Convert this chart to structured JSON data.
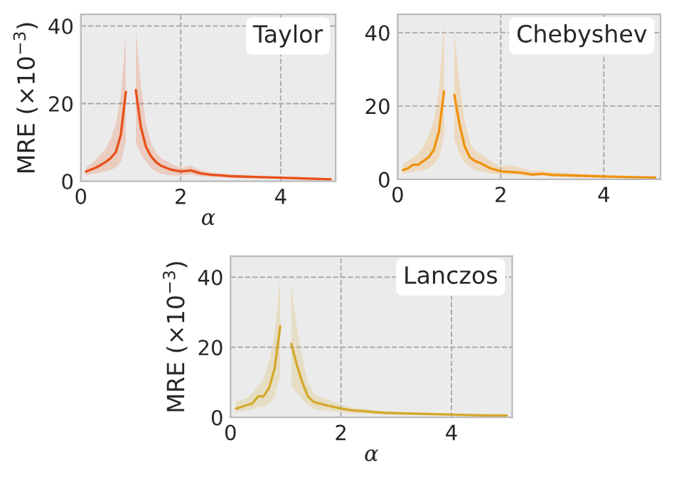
{
  "chart_data": [
    {
      "type": "line",
      "title": "Taylor",
      "xlabel": "α",
      "ylabel": "MRE (×10$^{−3}$)",
      "x": [
        0.1,
        0.2,
        0.3,
        0.4,
        0.5,
        0.6,
        0.7,
        0.8,
        0.9,
        1.0,
        1.1,
        1.2,
        1.3,
        1.4,
        1.5,
        1.6,
        1.8,
        2.0,
        2.2,
        2.4,
        2.6,
        2.8,
        3.0,
        3.5,
        4.0,
        4.5,
        5.0
      ],
      "series": [
        {
          "color": "#e8501a",
          "values": [
            2.5,
            3,
            3.5,
            4.2,
            5,
            6,
            7.5,
            12,
            23,
            null,
            23.5,
            14,
            9,
            6.5,
            5,
            4,
            3,
            2.5,
            2.8,
            2,
            1.7,
            1.5,
            1.3,
            1.1,
            0.9,
            0.7,
            0.5
          ],
          "lower": [
            1.5,
            1.8,
            2,
            2.3,
            2.5,
            3,
            3.5,
            5,
            10,
            null,
            10,
            7,
            5,
            3.5,
            2.5,
            2,
            1.5,
            1.5,
            1.8,
            1.3,
            1.1,
            1,
            0.9,
            0.7,
            0.6,
            0.5,
            0.3
          ],
          "upper": [
            3.5,
            4.5,
            5.5,
            7,
            8.5,
            11,
            15,
            22,
            38,
            null,
            39,
            25,
            15,
            10,
            7.5,
            6,
            4.5,
            3.5,
            4,
            2.8,
            2.3,
            2,
            1.8,
            1.5,
            1.2,
            1,
            0.7
          ]
        }
      ],
      "xlim": [
        0,
        5.1
      ],
      "ylim": [
        0,
        43
      ],
      "xticks": [
        0,
        2,
        4
      ],
      "yticks": [
        0,
        20,
        40
      ],
      "grid": true
    },
    {
      "type": "line",
      "title": "Chebyshev",
      "x": [
        0.1,
        0.2,
        0.3,
        0.4,
        0.5,
        0.6,
        0.7,
        0.8,
        0.9,
        1.0,
        1.1,
        1.2,
        1.3,
        1.4,
        1.5,
        1.6,
        1.8,
        2.0,
        2.2,
        2.4,
        2.6,
        2.8,
        3.0,
        3.5,
        4.0,
        4.5,
        5.0
      ],
      "series": [
        {
          "color": "#f0920f",
          "values": [
            2.5,
            3,
            4,
            4,
            5,
            6,
            8,
            13,
            24,
            null,
            23,
            15,
            9,
            6,
            5,
            4.5,
            3,
            2.2,
            2,
            1.8,
            1.3,
            1.5,
            1.2,
            1,
            0.8,
            0.6,
            0.5
          ],
          "lower": [
            1.5,
            1.8,
            2,
            2.3,
            2.5,
            3,
            4,
            6,
            12,
            null,
            11,
            7,
            4.5,
            3.5,
            2.5,
            2.2,
            1.6,
            1.3,
            1.3,
            1.1,
            0.9,
            1,
            0.8,
            0.6,
            0.5,
            0.4,
            0.3
          ],
          "upper": [
            4,
            5,
            6,
            7,
            9,
            12,
            16,
            24,
            43,
            null,
            40,
            26,
            16,
            10,
            8,
            7,
            5,
            3.5,
            3.8,
            3.2,
            2.3,
            2.4,
            2,
            1.5,
            1.2,
            1,
            0.8
          ]
        }
      ],
      "xlim": [
        0,
        5.1
      ],
      "ylim": [
        0,
        45
      ],
      "xticks": [
        0,
        2,
        4
      ],
      "yticks": [
        0,
        20,
        40
      ],
      "grid": true
    },
    {
      "type": "line",
      "title": "Lanczos",
      "xlabel": "α",
      "ylabel": "MRE (×10$^{−3}$)",
      "x": [
        0.1,
        0.2,
        0.3,
        0.4,
        0.5,
        0.6,
        0.7,
        0.8,
        0.9,
        1.0,
        1.1,
        1.2,
        1.3,
        1.4,
        1.5,
        1.6,
        1.8,
        2.0,
        2.2,
        2.4,
        2.6,
        2.8,
        3.0,
        3.5,
        4.0,
        4.5,
        5.0
      ],
      "series": [
        {
          "color": "#d4a82a",
          "values": [
            2.5,
            3,
            3.5,
            4,
            6,
            6,
            8.5,
            14,
            26,
            null,
            21,
            15,
            10,
            6,
            4.5,
            4,
            3.2,
            2.5,
            2,
            1.8,
            1.5,
            1.3,
            1.2,
            1,
            0.8,
            0.6,
            0.5
          ],
          "lower": [
            1.5,
            1.8,
            2,
            2.3,
            3,
            3,
            4,
            6,
            12,
            null,
            9,
            7,
            5,
            3.5,
            2.5,
            2.2,
            1.8,
            1.5,
            1.2,
            1.1,
            0.9,
            0.8,
            0.8,
            0.6,
            0.5,
            0.4,
            0.3
          ],
          "upper": [
            4.5,
            5,
            5.5,
            7,
            9,
            11,
            16,
            24,
            40,
            null,
            38,
            26,
            17,
            10,
            7,
            6,
            5,
            3.5,
            2.8,
            2.5,
            2.1,
            1.8,
            1.6,
            1.4,
            1.1,
            0.9,
            0.8
          ]
        }
      ],
      "xlim": [
        0,
        5.1
      ],
      "ylim": [
        0,
        46
      ],
      "xticks": [
        0,
        2,
        4
      ],
      "yticks": [
        0,
        20,
        40
      ],
      "grid": true
    }
  ]
}
